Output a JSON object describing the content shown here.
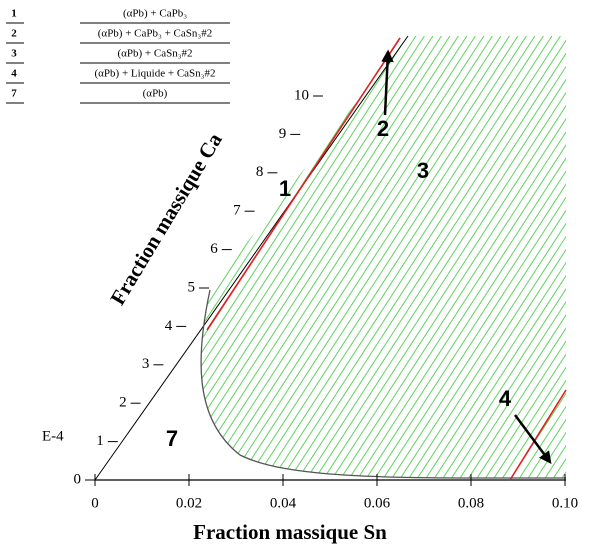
{
  "legend": [
    {
      "number": "1",
      "text": "(αPb) + CaPb₃"
    },
    {
      "number": "2",
      "text": "(αPb) + CaPb₃ + CaSn₃#2"
    },
    {
      "number": "3",
      "text": "(αPb) + CaSn₃#2"
    },
    {
      "number": "4",
      "text": "(αPb) + Liquide + CaSn₃#2"
    },
    {
      "number": "7",
      "text": "(αPb)"
    }
  ],
  "axes": {
    "x": {
      "title": "Fraction massique Sn",
      "ticks": [
        "0",
        "0.02",
        "0.04",
        "0.06",
        "0.08",
        "0.10"
      ]
    },
    "y": {
      "title": "Fraction massique Ca",
      "unit": "E-4",
      "ticks": [
        "0",
        "1",
        "2",
        "3",
        "4",
        "5",
        "6",
        "7",
        "8",
        "9",
        "10"
      ]
    }
  },
  "region_labels": [
    "1",
    "2",
    "3",
    "4",
    "7"
  ]
}
